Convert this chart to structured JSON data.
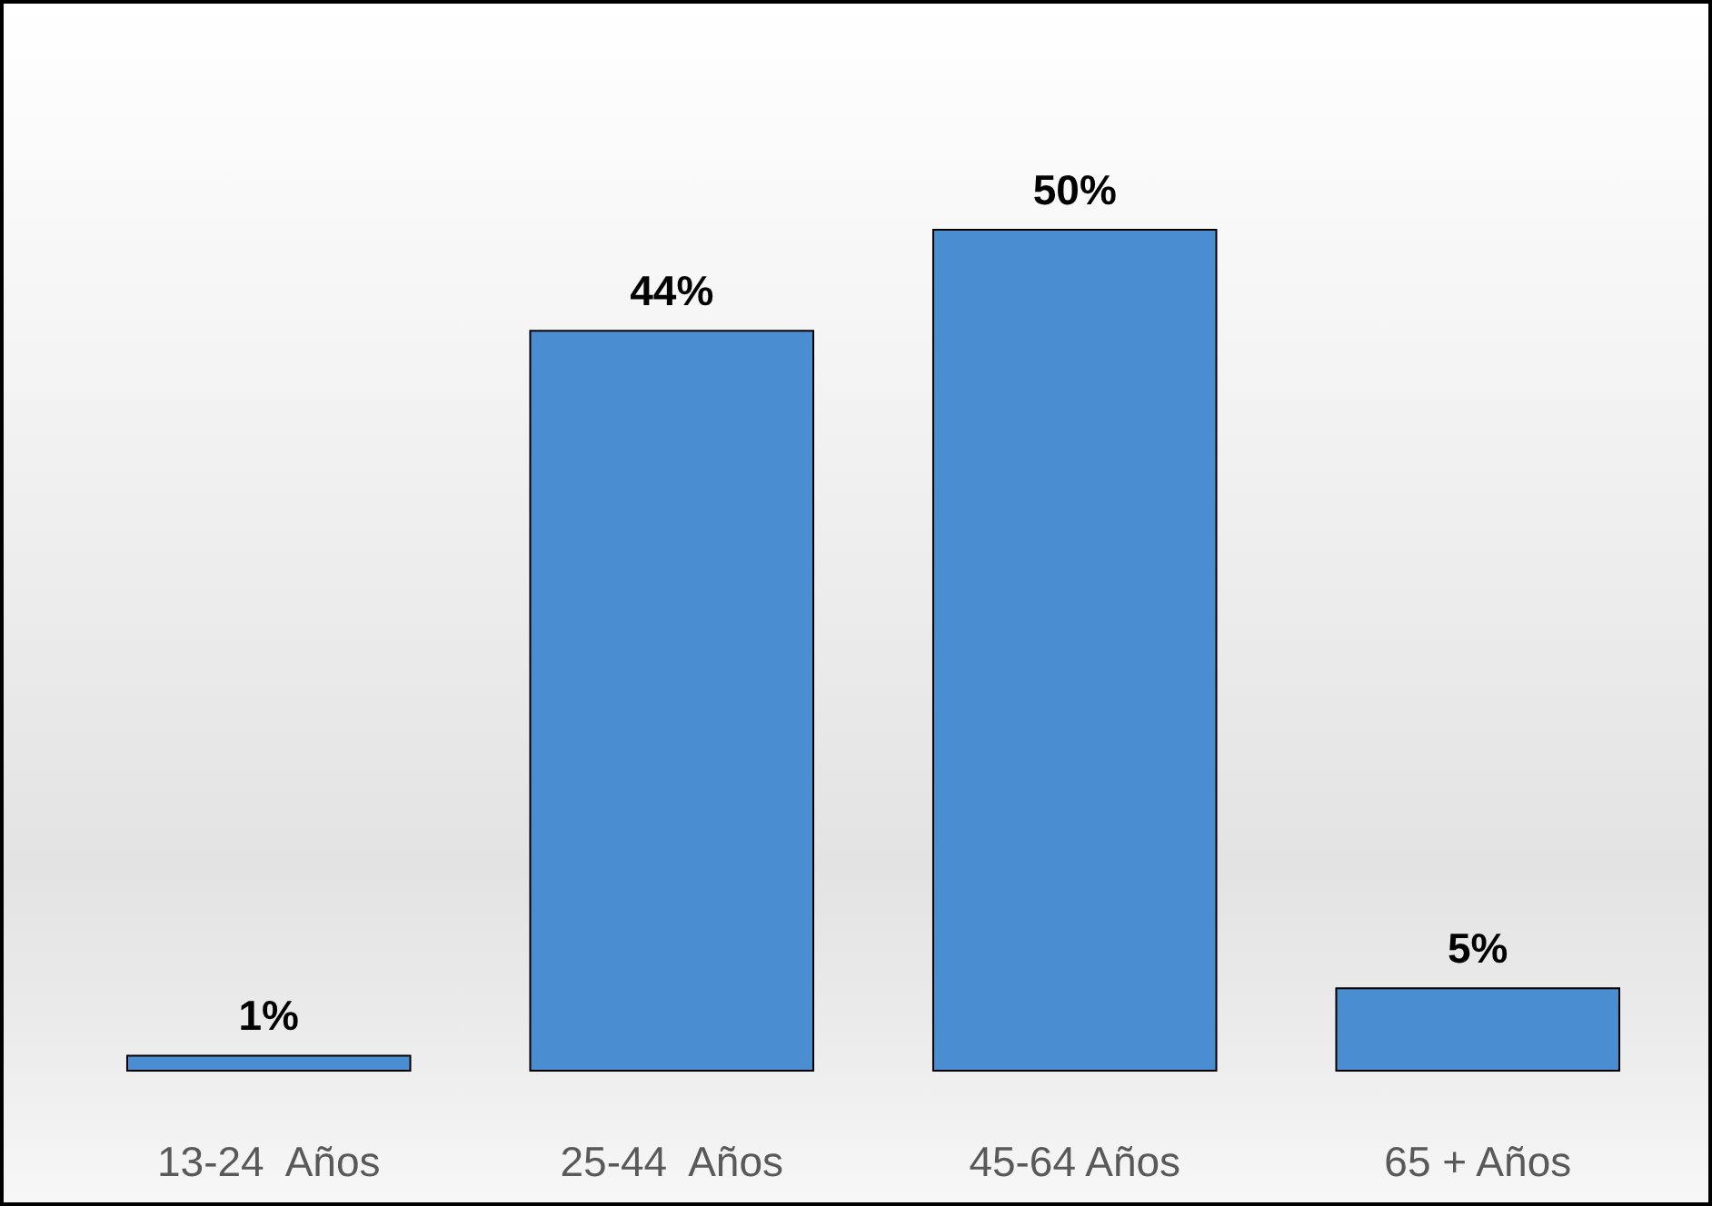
{
  "chart_data": {
    "type": "bar",
    "categories": [
      "13-24  Años",
      "25-44  Años",
      "45-64 Años",
      "65 + Años"
    ],
    "values": [
      1,
      44,
      50,
      5
    ],
    "value_labels": [
      "1%",
      "44%",
      "50%",
      "5%"
    ],
    "color": "#4a8dd1",
    "tick_labels": "x"
  }
}
